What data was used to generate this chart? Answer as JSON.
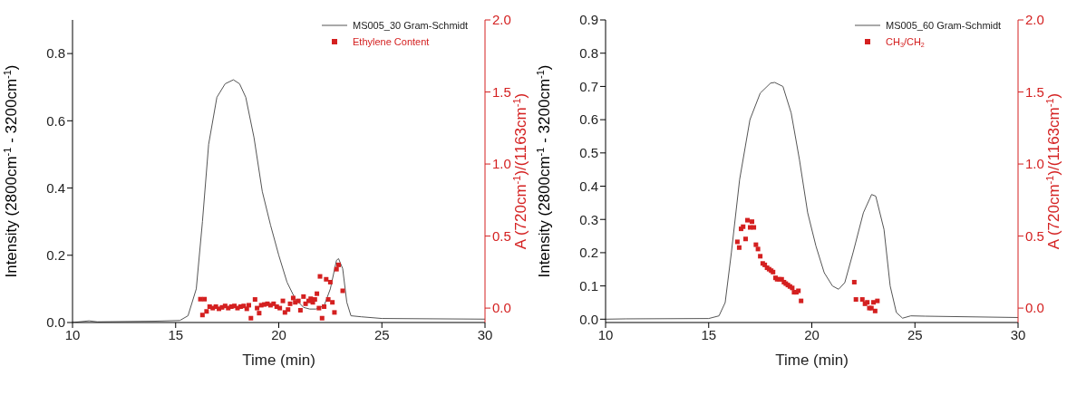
{
  "chart_data": [
    {
      "type": "line",
      "xlabel": "Time (min)",
      "ylabel": "Intensity (2800cm$^{-1}$ - 3200cm$^{-1}$)",
      "y2label": "A (720cm$^{-1}$)/(1163cm$^{-1}$)",
      "xlim": [
        10,
        30
      ],
      "xticks": [
        10,
        15,
        20,
        25,
        30
      ],
      "ylim": [
        0,
        0.9
      ],
      "yticks": [
        {
          "value": 0,
          "label": "0.0"
        },
        {
          "value": 0.2,
          "label": "0.2"
        },
        {
          "value": 0.4,
          "label": "0.4"
        },
        {
          "value": 0.6,
          "label": "0.6"
        },
        {
          "value": 0.8,
          "label": "0.8"
        }
      ],
      "y2lim": [
        -0.1,
        2.0
      ],
      "y2ticks": [
        {
          "value": 0,
          "label": "0.0"
        },
        {
          "value": 0.5,
          "label": "0.5"
        },
        {
          "value": 1,
          "label": "1.0"
        },
        {
          "value": 1.5,
          "label": "1.5"
        },
        {
          "value": 2,
          "label": "2.0"
        }
      ],
      "legend": "top right",
      "grid": false,
      "series": [
        {
          "name": "MS005_30 Gram-Schmidt",
          "color": "#555555",
          "line_style": "solid",
          "marker": "none",
          "x": [
            10,
            10.8,
            11.2,
            14,
            15.2,
            15.6,
            16,
            16.3,
            16.6,
            17,
            17.4,
            17.8,
            18.1,
            18.4,
            18.8,
            19.2,
            19.6,
            20,
            20.4,
            20.8,
            21.2,
            21.5,
            21.8,
            22.2,
            22.5,
            22.8,
            22.9,
            23.1,
            23.3,
            23.5,
            24,
            25,
            30
          ],
          "values": [
            0.0,
            0.005,
            0.002,
            0.004,
            0.006,
            0.02,
            0.1,
            0.3,
            0.53,
            0.67,
            0.71,
            0.722,
            0.71,
            0.67,
            0.55,
            0.39,
            0.29,
            0.2,
            0.12,
            0.07,
            0.045,
            0.04,
            0.04,
            0.05,
            0.1,
            0.185,
            0.19,
            0.16,
            0.06,
            0.02,
            0.017,
            0.012,
            0.01
          ]
        },
        {
          "type": "scatter",
          "name": "Ethylene Content",
          "color": "#d42020",
          "marker": "square",
          "axis": "y2",
          "x": [
            16.2,
            16.3,
            16.4,
            16.5,
            16.65,
            16.8,
            16.95,
            17.1,
            17.25,
            17.4,
            17.55,
            17.7,
            17.85,
            18.0,
            18.15,
            18.3,
            18.45,
            18.55,
            18.65,
            18.85,
            18.95,
            19.05,
            19.15,
            19.3,
            19.45,
            19.6,
            19.75,
            19.9,
            20.05,
            20.2,
            20.3,
            20.45,
            20.55,
            20.7,
            20.8,
            20.95,
            21.05,
            21.2,
            21.3,
            21.45,
            21.55,
            21.65,
            21.75,
            21.85,
            21.95,
            22.0,
            22.1,
            22.2,
            22.3,
            22.4,
            22.5,
            22.6,
            22.7,
            22.8,
            22.9,
            23.1
          ],
          "values": [
            0.062,
            -0.048,
            0.062,
            -0.023,
            0.01,
            0.0,
            0.01,
            -0.005,
            0.005,
            0.015,
            0.0,
            0.01,
            0.015,
            0.0,
            0.01,
            0.015,
            -0.005,
            0.02,
            -0.07,
            0.06,
            0.0,
            -0.035,
            0.02,
            0.025,
            0.03,
            0.02,
            0.03,
            0.01,
            0.0,
            0.05,
            -0.03,
            -0.01,
            0.03,
            0.07,
            0.04,
            0.05,
            -0.015,
            0.08,
            0.03,
            0.05,
            0.065,
            0.04,
            0.06,
            0.1,
            0.0,
            0.22,
            -0.07,
            0.01,
            0.2,
            0.06,
            0.18,
            0.04,
            -0.03,
            0.27,
            0.3,
            0.12
          ]
        }
      ]
    },
    {
      "type": "line",
      "xlabel": "Time (min)",
      "ylabel": "Intensity (2800cm$^{-1}$ - 3200cm$^{-1}$)",
      "y2label": "A (720cm$^{-1}$)/(1163cm$^{-1}$)",
      "xlim": [
        10,
        30
      ],
      "xticks": [
        10,
        15,
        20,
        25,
        30
      ],
      "ylim": [
        -0.01,
        0.9
      ],
      "yticks": [
        {
          "value": 0,
          "label": "0.0"
        },
        {
          "value": 0.1,
          "label": "0.1"
        },
        {
          "value": 0.2,
          "label": "0.2"
        },
        {
          "value": 0.3,
          "label": "0.3"
        },
        {
          "value": 0.4,
          "label": "0.4"
        },
        {
          "value": 0.5,
          "label": "0.5"
        },
        {
          "value": 0.6,
          "label": "0.6"
        },
        {
          "value": 0.7,
          "label": "0.7"
        },
        {
          "value": 0.8,
          "label": "0.8"
        },
        {
          "value": 0.9,
          "label": "0.9"
        }
      ],
      "y2lim": [
        -0.1,
        2.0
      ],
      "y2ticks": [
        {
          "value": 0,
          "label": "0.0"
        },
        {
          "value": 0.5,
          "label": "0.5"
        },
        {
          "value": 1,
          "label": "1.0"
        },
        {
          "value": 1.5,
          "label": "1.5"
        },
        {
          "value": 2,
          "label": "2.0"
        }
      ],
      "legend": "top right",
      "grid": false,
      "series": [
        {
          "name": "MS005_60 Gram-Schmidt",
          "color": "#555555",
          "line_style": "solid",
          "marker": "none",
          "x": [
            10,
            11,
            15,
            15.5,
            15.8,
            16.1,
            16.5,
            17,
            17.5,
            18,
            18.2,
            18.6,
            19,
            19.4,
            19.8,
            20.2,
            20.6,
            21,
            21.3,
            21.6,
            22,
            22.5,
            22.9,
            23.1,
            23.5,
            23.8,
            24.1,
            24.4,
            24.8,
            25.5,
            30
          ],
          "values": [
            0.0,
            0.001,
            0.002,
            0.01,
            0.05,
            0.2,
            0.42,
            0.6,
            0.68,
            0.71,
            0.712,
            0.7,
            0.62,
            0.48,
            0.32,
            0.22,
            0.14,
            0.1,
            0.09,
            0.11,
            0.2,
            0.32,
            0.375,
            0.37,
            0.27,
            0.1,
            0.02,
            0.003,
            0.01,
            0.009,
            0.005
          ]
        },
        {
          "type": "scatter",
          "name": "CH$_{3}$/CH$_{2}$",
          "color": "#d42020",
          "marker": "square",
          "axis": "y2",
          "x": [
            16.39,
            16.48,
            16.57,
            16.67,
            16.79,
            16.88,
            17.01,
            17.1,
            17.19,
            17.29,
            17.39,
            17.5,
            17.62,
            17.72,
            17.83,
            17.93,
            18.03,
            18.12,
            18.24,
            18.32,
            18.43,
            18.54,
            18.65,
            18.74,
            18.84,
            18.94,
            19.05,
            19.14,
            19.25,
            19.35,
            19.48,
            22.06,
            22.14,
            22.45,
            22.58,
            22.69,
            22.79,
            22.89,
            22.99,
            23.07,
            23.18
          ],
          "values": [
            0.46,
            0.42,
            0.55,
            0.565,
            0.48,
            0.61,
            0.56,
            0.6,
            0.56,
            0.44,
            0.41,
            0.36,
            0.31,
            0.3,
            0.28,
            0.27,
            0.26,
            0.25,
            0.21,
            0.2,
            0.2,
            0.2,
            0.18,
            0.17,
            0.16,
            0.15,
            0.14,
            0.11,
            0.11,
            0.12,
            0.05,
            0.18,
            0.06,
            0.06,
            0.03,
            0.04,
            0.0,
            0.0,
            0.04,
            -0.02,
            0.05
          ]
        }
      ]
    }
  ]
}
